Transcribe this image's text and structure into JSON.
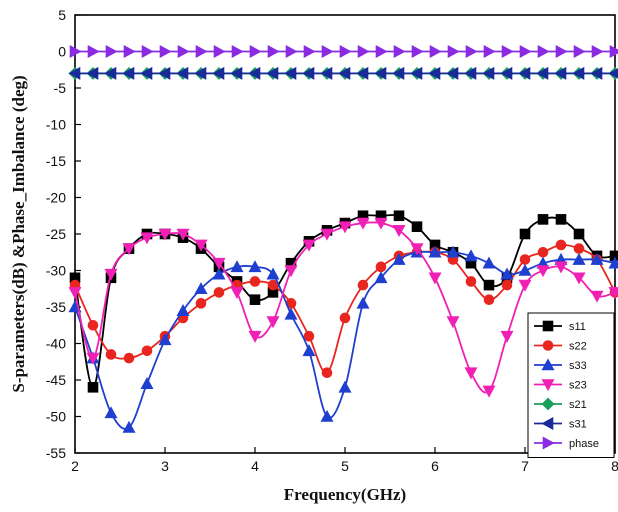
{
  "chart_data": {
    "type": "line",
    "xlabel": "Frequency(GHz)",
    "ylabel": "S-parameters(dB) &Phase_Imbalance (deg)",
    "xlim": [
      2,
      8
    ],
    "ylim": [
      -55,
      5
    ],
    "xticks": [
      2,
      3,
      4,
      5,
      6,
      7,
      8
    ],
    "yticks": [
      5,
      0,
      -5,
      -10,
      -15,
      -20,
      -25,
      -30,
      -35,
      -40,
      -45,
      -50,
      -55
    ],
    "legend_position": "bottom-right",
    "x": [
      2.0,
      2.2,
      2.4,
      2.6,
      2.8,
      3.0,
      3.2,
      3.4,
      3.6,
      3.8,
      4.0,
      4.2,
      4.4,
      4.6,
      4.8,
      5.0,
      5.2,
      5.4,
      5.6,
      5.8,
      6.0,
      6.2,
      6.4,
      6.6,
      6.8,
      7.0,
      7.2,
      7.4,
      7.6,
      7.8,
      8.0
    ],
    "series": [
      {
        "name": "s11",
        "color": "#000000",
        "marker": "square",
        "values": [
          -31,
          -46,
          -31,
          -27,
          -25,
          -25,
          -25.5,
          -27,
          -29.5,
          -31.5,
          -34,
          -33,
          -29,
          -26,
          -24.5,
          -23.5,
          -22.5,
          -22.5,
          -22.5,
          -24,
          -26.5,
          -27.5,
          -29,
          -32,
          -31,
          -25,
          -23,
          -23,
          -25,
          -28,
          -28
        ]
      },
      {
        "name": "s22",
        "color": "#e8251f",
        "marker": "circle",
        "values": [
          -32,
          -37.5,
          -41.5,
          -42,
          -41,
          -39,
          -36.5,
          -34.5,
          -33,
          -32,
          -31.5,
          -32,
          -34.5,
          -39,
          -44,
          -36.5,
          -32,
          -29.5,
          -28,
          -27.5,
          -27.5,
          -28.5,
          -31.5,
          -34,
          -32,
          -28.5,
          -27.5,
          -26.5,
          -27,
          -28.5,
          -33
        ]
      },
      {
        "name": "s33",
        "color": "#1f3fd0",
        "marker": "triangle-up",
        "values": [
          -35,
          -42,
          -49.5,
          -51.5,
          -45.5,
          -39.5,
          -35.5,
          -32.5,
          -30.5,
          -29.5,
          -29.5,
          -30.5,
          -36,
          -41,
          -50,
          -46,
          -34.5,
          -31,
          -28.5,
          -27.5,
          -27.5,
          -27.5,
          -28,
          -29,
          -30.5,
          -30,
          -29,
          -28.5,
          -28.5,
          -28.5,
          -29
        ]
      },
      {
        "name": "s23",
        "color": "#f020b4",
        "marker": "triangle-down",
        "values": [
          -33,
          -42,
          -30.5,
          -27,
          -25.5,
          -25,
          -25,
          -26.5,
          -29,
          -33,
          -39,
          -37,
          -30,
          -26.5,
          -25,
          -24,
          -23.5,
          -23.5,
          -24.5,
          -27,
          -31,
          -37,
          -44,
          -46.5,
          -39,
          -32,
          -30,
          -29.5,
          -31,
          -33.5,
          -33
        ]
      },
      {
        "name": "s21",
        "color": "#16a05c",
        "marker": "diamond",
        "values": [
          -3,
          -3,
          -3,
          -3,
          -3,
          -3,
          -3,
          -3,
          -3,
          -3,
          -3,
          -3,
          -3,
          -3,
          -3,
          -3,
          -3,
          -3,
          -3,
          -3,
          -3,
          -3,
          -3,
          -3,
          -3,
          -3,
          -3,
          -3,
          -3,
          -3,
          -3
        ]
      },
      {
        "name": "s31",
        "color": "#1a2a9a",
        "marker": "triangle-left",
        "values": [
          -3,
          -3,
          -3,
          -3,
          -3,
          -3,
          -3,
          -3,
          -3,
          -3,
          -3,
          -3,
          -3,
          -3,
          -3,
          -3,
          -3,
          -3,
          -3,
          -3,
          -3,
          -3,
          -3,
          -3,
          -3,
          -3,
          -3,
          -3,
          -3,
          -3,
          -3
        ]
      },
      {
        "name": "phase",
        "color": "#8a2be2",
        "marker": "triangle-right",
        "values": [
          0,
          0,
          0,
          0,
          0,
          0,
          0,
          0,
          0,
          0,
          0,
          0,
          0,
          0,
          0,
          0,
          0,
          0,
          0,
          0,
          0,
          0,
          0,
          0,
          0,
          0,
          0,
          0,
          0,
          0,
          0
        ]
      }
    ]
  }
}
